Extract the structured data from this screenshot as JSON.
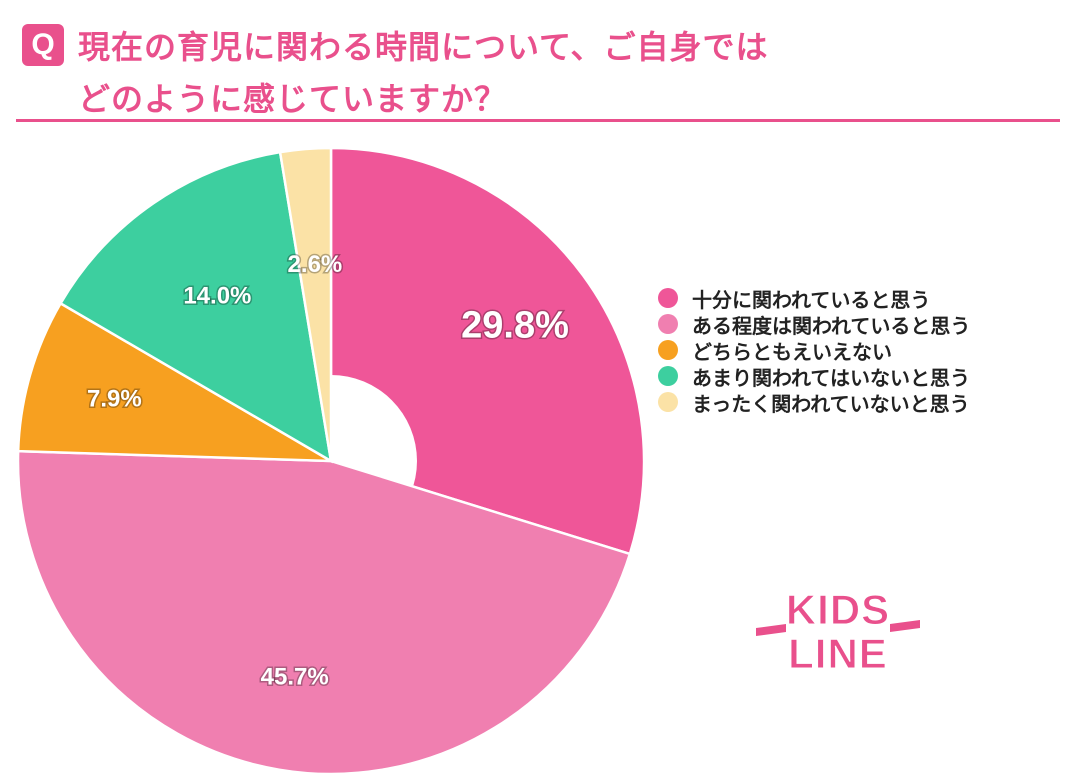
{
  "header": {
    "badge": "Q",
    "title_line1": "現在の育児に関わる時間について、ご自身では",
    "title_line2": "どのように感じていますか？"
  },
  "logo": {
    "line1": "KIDS",
    "line2": "LINE"
  },
  "colors": {
    "accent": "#e9508c",
    "slice_1": "#ef5698",
    "slice_2": "#f07fb0",
    "slice_3": "#f7a020",
    "slice_4": "#3dcf9f",
    "slice_5": "#fbe2a6"
  },
  "chart_data": {
    "type": "pie",
    "donut": true,
    "title": "現在の育児に関わる時間について、ご自身ではどのように感じていますか？",
    "categories": [
      "十分に関われていると思う",
      "ある程度は関われていると思う",
      "どちらともえいえない",
      "あまり関われてはいないと思う",
      "まったく関われていないと思う"
    ],
    "values": [
      29.8,
      45.7,
      7.9,
      14.0,
      2.6
    ],
    "data_labels": [
      "29.8%",
      "45.7%",
      "7.9%",
      "14.0%",
      "2.6%"
    ],
    "colors": [
      "#ef5698",
      "#f07fb0",
      "#f7a020",
      "#3dcf9f",
      "#fbe2a6"
    ],
    "legend_position": "right"
  }
}
